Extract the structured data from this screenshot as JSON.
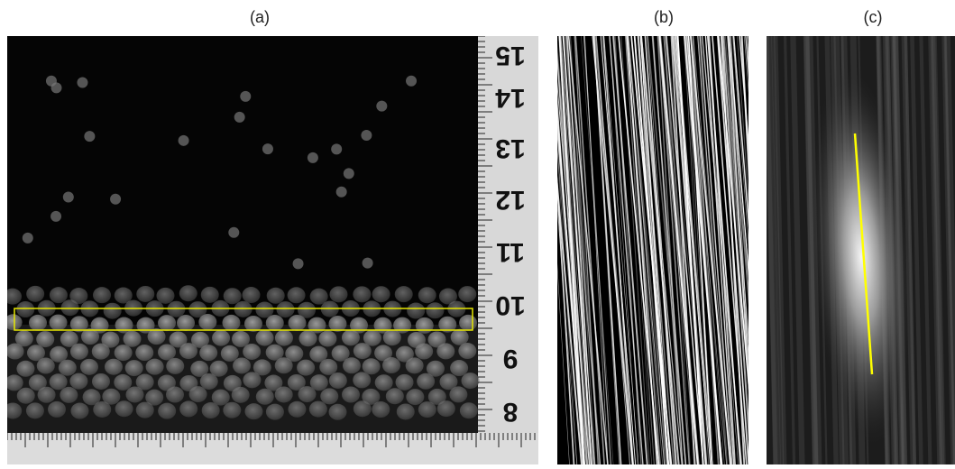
{
  "panels": [
    {
      "label": "(a)"
    },
    {
      "label": "(b)"
    },
    {
      "label": "(c)"
    }
  ],
  "ruler_labels": [
    "15",
    "14",
    "13",
    "12",
    "11",
    "10",
    "9",
    "8"
  ]
}
